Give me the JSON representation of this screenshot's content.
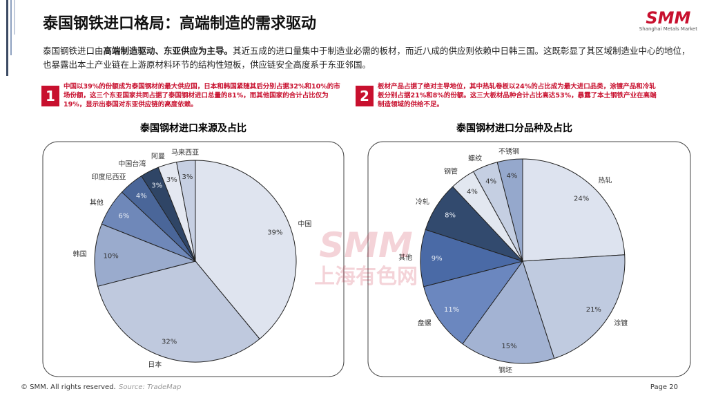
{
  "header": {
    "title": "泰国钢铁进口格局：高端制造的需求驱动",
    "logo": "SMM",
    "logo_sub": "Shanghai Metals Market"
  },
  "intro": {
    "parts": [
      "泰国钢铁进口由",
      "高端制造驱动、东亚供应为主导。",
      "其近五成的进口量集中于制造业必需的板材，而近八成的供应则依赖中日韩三国。这既彰显了其区域制造业中心的地位，也暴露出本土产业链在上游原材料环节的结构性短板，供应链安全高度系于东亚邻国。"
    ]
  },
  "notes": [
    {
      "number": "1",
      "text": "中国以39%的份额成为泰国钢材的最大供应国，日本和韩国紧随其后分别占据32%和10%的市场份额，这三个东亚国家共同占据了泰国钢材进口总量的81%，而其他国家的合计占比仅为19%，显示出泰国对东亚供应链的高度依赖。"
    },
    {
      "number": "2",
      "text": "板材产品占据了绝对主导地位，其中热轧卷板以24%的占比成为最大进口品类，涂镀产品和冷轧板分别占据21%和8%的份额。这三大板材品种合计占比高达53%，暴露了本土钢铁产业在高端制造领域的供给不足。"
    }
  ],
  "chart_data": [
    {
      "type": "pie",
      "title": "泰国钢材进口来源及占比",
      "categories": [
        "中国",
        "日本",
        "韩国",
        "其他",
        "印度尼西亚",
        "中国台湾",
        "阿曼",
        "马来西亚"
      ],
      "values": [
        39,
        32,
        10,
        6,
        4,
        3,
        3,
        3
      ],
      "value_labels": [
        "39%",
        "32%",
        "10%",
        "6%",
        "4%",
        "3%",
        "3%",
        "3%"
      ],
      "colors": [
        "#dfe4ef",
        "#bfc9de",
        "#9aabcd",
        "#6f88b9",
        "#4a6699",
        "#2f4566",
        "#e4e8f1",
        "#c6cfe2"
      ]
    },
    {
      "type": "pie",
      "title": "泰国钢材进口分品种及占比",
      "categories": [
        "热轧",
        "涂镀",
        "钢坯",
        "盘螺",
        "其他",
        "冷轧",
        "钢管",
        "螺纹",
        "不锈钢"
      ],
      "values": [
        24,
        21,
        15,
        11,
        9,
        8,
        4,
        4,
        4
      ],
      "value_labels": [
        "24%",
        "21%",
        "15%",
        "11%",
        "9%",
        "8%",
        "4%",
        "4%",
        "4%"
      ],
      "colors": [
        "#dde3ef",
        "#c0cbe0",
        "#a3b3d3",
        "#6b87bf",
        "#4a6aa6",
        "#324a6e",
        "#e2e7f0",
        "#c5cfe2",
        "#95a8cc"
      ]
    }
  ],
  "watermark": {
    "text1": "SMM",
    "text2": "上海有色网"
  },
  "footer": {
    "copyright": "© SMM. All rights reserved.",
    "source": "Source:  TradeMap",
    "page": "Page 20"
  }
}
